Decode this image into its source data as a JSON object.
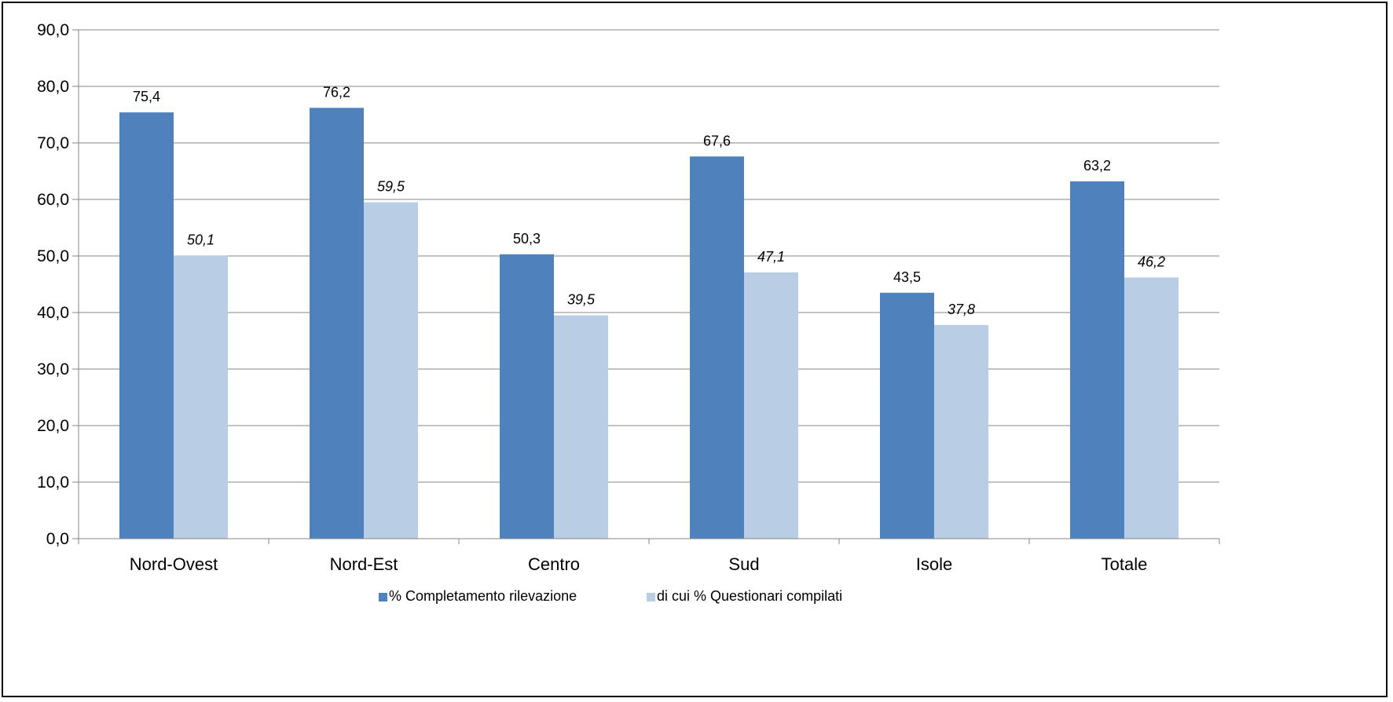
{
  "chart_data": {
    "type": "bar",
    "categories": [
      "Nord-Ovest",
      "Nord-Est",
      "Centro",
      "Sud",
      "Isole",
      "Totale"
    ],
    "series": [
      {
        "name": "% Completamento rilevazione",
        "values": [
          75.4,
          76.2,
          50.3,
          67.6,
          43.5,
          63.2
        ],
        "labels": [
          "75,4",
          "76,2",
          "50,3",
          "67,6",
          "43,5",
          "63,2"
        ],
        "color": "#4F81BD",
        "label_style": "normal"
      },
      {
        "name": "di cui % Questionari compilati",
        "values": [
          50.1,
          59.5,
          39.5,
          47.1,
          37.8,
          46.2
        ],
        "labels": [
          "50,1",
          "59,5",
          "39,5",
          "47,1",
          "37,8",
          "46,2"
        ],
        "color": "#B9CDE5",
        "label_style": "italic"
      }
    ],
    "y_ticks": [
      "0,0",
      "10,0",
      "20,0",
      "30,0",
      "40,0",
      "50,0",
      "60,0",
      "70,0",
      "80,0",
      "90,0"
    ],
    "ylim": [
      0,
      90
    ],
    "ystep": 10,
    "grid": true,
    "gridline_color": "#868686",
    "legend_position": "bottom",
    "title": "",
    "xlabel": "",
    "ylabel": ""
  }
}
